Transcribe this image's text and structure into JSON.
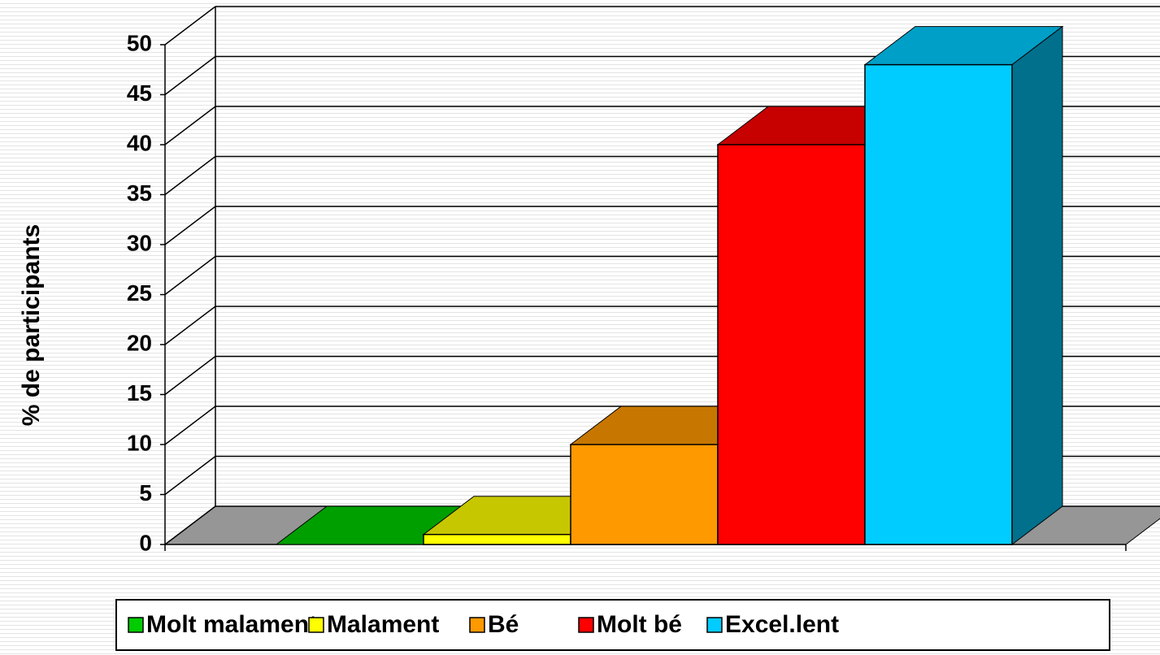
{
  "chart_data": {
    "type": "bar",
    "y_label": "% de participants",
    "categories": [
      "Molt malament",
      "Malament",
      "Bé",
      "Molt bé",
      "Excel.lent"
    ],
    "values": [
      0,
      1,
      10,
      40,
      48
    ],
    "colors": [
      "#00cc00",
      "#ffff00",
      "#ff9900",
      "#ff0000",
      "#00ccff"
    ],
    "ylim": [
      0,
      50
    ],
    "yticks": [
      0,
      5,
      10,
      15,
      20,
      25,
      30,
      35,
      40,
      45,
      50
    ],
    "grid": true,
    "legend": "bottom"
  }
}
